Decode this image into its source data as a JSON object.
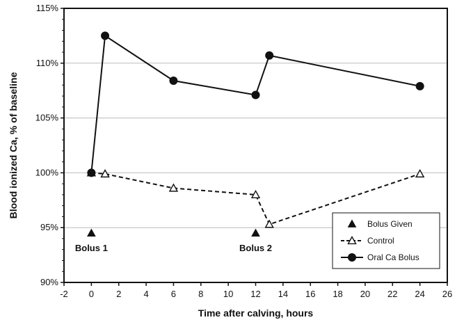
{
  "chart_data": {
    "type": "line",
    "title": "",
    "xlabel": "Time after calving, hours",
    "ylabel": "Blood ionized Ca, % of baseline",
    "xlim": [
      -2,
      26
    ],
    "ylim": [
      90,
      115
    ],
    "x_ticks": [
      -2,
      0,
      2,
      4,
      6,
      8,
      10,
      12,
      14,
      16,
      18,
      20,
      22,
      24,
      26
    ],
    "y_ticks": [
      90,
      95,
      100,
      105,
      110,
      115
    ],
    "y_tick_labels": [
      "90%",
      "95%",
      "100%",
      "105%",
      "110%",
      "115%"
    ],
    "grid": "horizontal",
    "legend_position": "bottom-right",
    "series": [
      {
        "name": "Bolus Given",
        "style": "markers",
        "marker": "filled-triangle",
        "x": [
          0,
          12
        ],
        "y": [
          94.5,
          94.5
        ]
      },
      {
        "name": "Control",
        "style": "dashed",
        "marker": "open-triangle",
        "x": [
          0,
          1,
          6,
          12,
          13,
          24
        ],
        "y": [
          100.0,
          99.9,
          98.6,
          98.0,
          95.3,
          99.9
        ]
      },
      {
        "name": "Oral Ca Bolus",
        "style": "solid",
        "marker": "filled-circle",
        "x": [
          0,
          1,
          6,
          12,
          13,
          24
        ],
        "y": [
          100.0,
          112.5,
          108.4,
          107.1,
          110.7,
          107.9
        ]
      }
    ],
    "annotations": [
      {
        "text": "Bolus 1",
        "x": 0,
        "y": 94.5
      },
      {
        "text": "Bolus 2",
        "x": 12,
        "y": 94.5
      }
    ],
    "colors": {
      "line": "#111111",
      "grid": "#bbbbbb",
      "background": "#ffffff"
    }
  }
}
